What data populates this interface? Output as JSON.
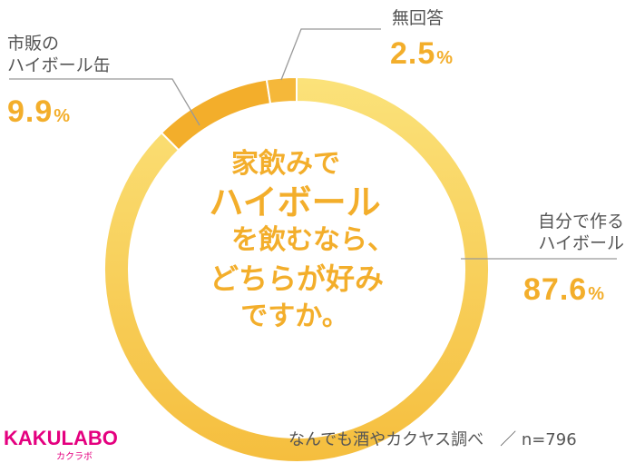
{
  "chart_data": {
    "type": "pie",
    "categories": [
      "自分で作るハイボール",
      "市販のハイボール缶",
      "無回答"
    ],
    "values": [
      87.6,
      9.9,
      2.5
    ],
    "unit": "%",
    "colors": [
      "#F7C442",
      "#F3AE2B",
      "#F5B83A"
    ],
    "donut": true
  },
  "labels": {
    "self_line1": "自分で作る",
    "self_line2": "ハイボール",
    "self_value": "87.6",
    "can_line1": "市販の",
    "can_line2": "ハイボール缶",
    "can_value": "9.9",
    "none_line1": "無回答",
    "none_value": "2.5",
    "unit": "%"
  },
  "center_text": {
    "line1": "家飲みで",
    "line2": "ハイボール",
    "line3": "を飲むなら、",
    "line4": "どちらが好み",
    "line5": "ですか。"
  },
  "footer": {
    "source": "なんでも酒やカクヤス調べ　／ n=796",
    "logo_main": "KAKULABO",
    "logo_sub": "カクラボ"
  }
}
